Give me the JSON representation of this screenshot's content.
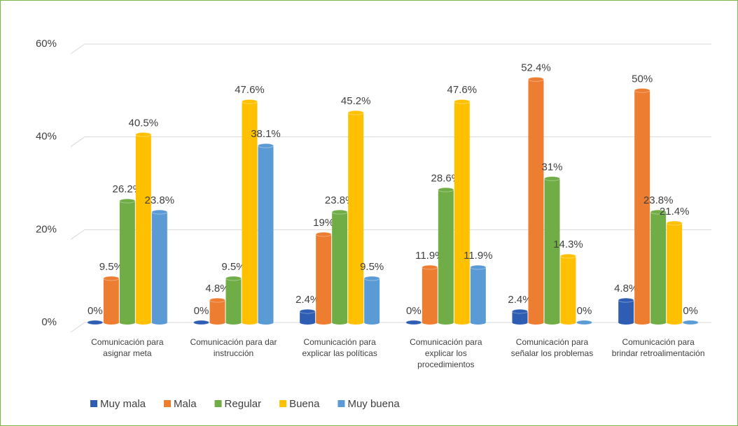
{
  "chart_data": {
    "type": "bar",
    "categories": [
      "Comunicación para asignar meta",
      "Comunicación para dar instrucción",
      "Comunicación para explicar las políticas",
      "Comunicación para explicar los procedimientos",
      "Comunicación para señalar los problemas",
      "Comunicación para brindar retroalimentación"
    ],
    "series": [
      {
        "name": "Muy mala",
        "color": "#2f5db3",
        "values": [
          0,
          0,
          2.4,
          0,
          2.4,
          4.8
        ],
        "value_labels": [
          "0%",
          "0%",
          "2.4%",
          "0%",
          "2.4%",
          "4.8%"
        ]
      },
      {
        "name": "Mala",
        "color": "#ed7d31",
        "values": [
          9.5,
          4.8,
          19,
          11.9,
          52.4,
          50
        ],
        "value_labels": [
          "9.5%",
          "4.8%",
          "19%",
          "11.9%",
          "52.4%",
          "50%"
        ]
      },
      {
        "name": "Regular",
        "color": "#70ad47",
        "values": [
          26.2,
          9.5,
          23.8,
          28.6,
          31,
          23.8
        ],
        "value_labels": [
          "26.2%",
          "9.5%",
          "23.8%",
          "28.6%",
          "31%",
          "23.8%"
        ]
      },
      {
        "name": "Buena",
        "color": "#ffc000",
        "values": [
          40.5,
          47.6,
          45.2,
          47.6,
          14.3,
          21.4
        ],
        "value_labels": [
          "40.5%",
          "47.6%",
          "45.2%",
          "47.6%",
          "14.3%",
          "21.4%"
        ]
      },
      {
        "name": "Muy buena",
        "color": "#5b9bd5",
        "values": [
          23.8,
          38.1,
          9.5,
          11.9,
          0,
          0
        ],
        "value_labels": [
          "23.8%",
          "38.1%",
          "9.5%",
          "11.9%",
          "0%",
          "0%"
        ]
      }
    ],
    "ylim": [
      0,
      60
    ],
    "yticks": [
      {
        "value": 0,
        "label": "0%"
      },
      {
        "value": 20,
        "label": "20%"
      },
      {
        "value": 40,
        "label": "40%"
      },
      {
        "value": 60,
        "label": "60%"
      }
    ],
    "grid": true,
    "legend": "bottom"
  }
}
